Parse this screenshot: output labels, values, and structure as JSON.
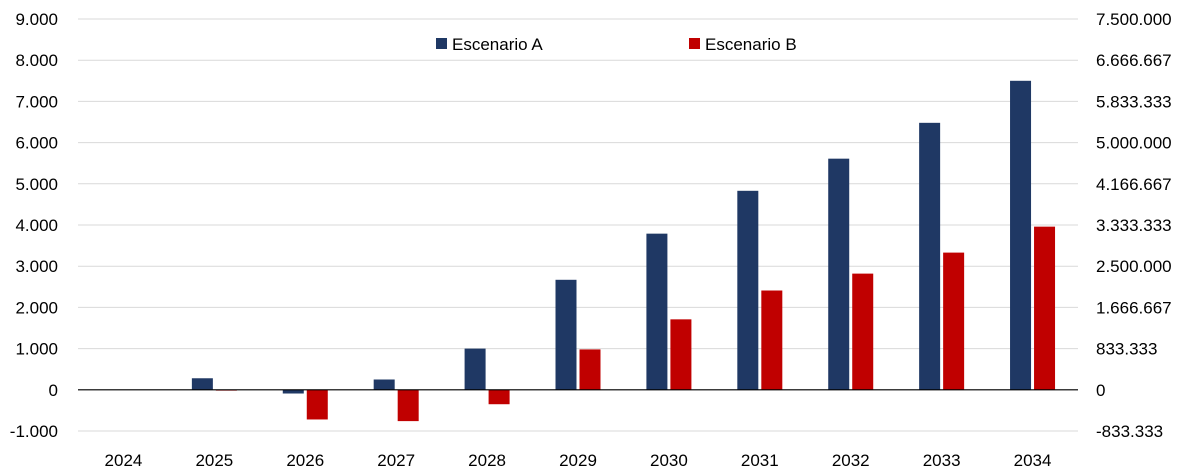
{
  "chart_data": {
    "type": "bar",
    "categories": [
      "2024",
      "2025",
      "2026",
      "2027",
      "2028",
      "2029",
      "2030",
      "2031",
      "2032",
      "2033",
      "2034"
    ],
    "series": [
      {
        "name": "Escenario A",
        "color": "#1f3864",
        "values": [
          0,
          280,
          -90,
          250,
          1000,
          2670,
          3790,
          4830,
          5610,
          6480,
          7500
        ]
      },
      {
        "name": "Escenario B",
        "color": "#c00000",
        "values": [
          0,
          -20,
          -720,
          -760,
          -350,
          980,
          1710,
          2410,
          2820,
          3330,
          3960
        ]
      }
    ],
    "ylim": [
      -1000,
      9000
    ],
    "yticks": [
      -1000,
      0,
      1000,
      2000,
      3000,
      4000,
      5000,
      6000,
      7000,
      8000,
      9000
    ],
    "ytick_labels": [
      "-1.000",
      "0",
      "1.000",
      "2.000",
      "3.000",
      "4.000",
      "5.000",
      "6.000",
      "7.000",
      "8.000",
      "9.000"
    ],
    "y2lim": [
      -833333,
      7500000
    ],
    "y2tick_labels": [
      "-833.333",
      "0",
      "833.333",
      "1.666.667",
      "2.500.000",
      "3.333.333",
      "4.166.667",
      "5.000.000",
      "5.833.333",
      "6.666.667",
      "7.500.000"
    ],
    "grid": true,
    "legend": "top-center",
    "title": "",
    "xlabel": "",
    "ylabel": ""
  }
}
